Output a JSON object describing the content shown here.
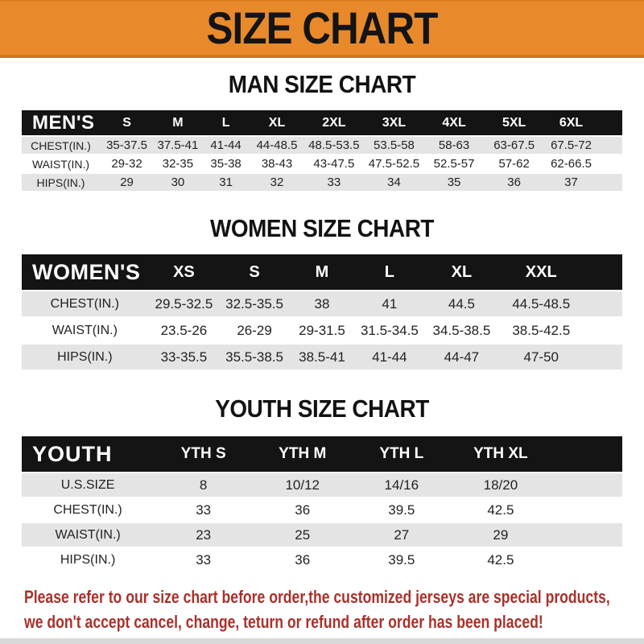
{
  "banner": {
    "title": "SIZE CHART"
  },
  "sections": {
    "men": {
      "title": "MAN SIZE CHART"
    },
    "women": {
      "title": "WOMEN SIZE CHART"
    },
    "youth": {
      "title": "YOUTH SIZE CHART"
    }
  },
  "tables": {
    "men": {
      "header_label": "MEN'S",
      "columns": [
        "S",
        "M",
        "L",
        "XL",
        "2XL",
        "3XL",
        "4XL",
        "5XL",
        "6XL"
      ],
      "rows": [
        {
          "label": "CHEST(IN.)",
          "values": [
            "35-37.5",
            "37.5-41",
            "41-44",
            "44-48.5",
            "48.5-53.5",
            "53.5-58",
            "58-63",
            "63-67.5",
            "67.5-72"
          ]
        },
        {
          "label": "WAIST(IN.)",
          "values": [
            "29-32",
            "32-35",
            "35-38",
            "38-43",
            "43-47.5",
            "47.5-52.5",
            "52.5-57",
            "57-62",
            "62-66.5"
          ]
        },
        {
          "label": "HIPS(IN.)",
          "values": [
            "29",
            "30",
            "31",
            "32",
            "33",
            "34",
            "35",
            "36",
            "37"
          ]
        }
      ]
    },
    "women": {
      "header_label": "WOMEN'S",
      "columns": [
        "XS",
        "S",
        "M",
        "L",
        "XL",
        "XXL"
      ],
      "rows": [
        {
          "label": "CHEST(IN.)",
          "values": [
            "29.5-32.5",
            "32.5-35.5",
            "38",
            "41",
            "44.5",
            "44.5-48.5"
          ]
        },
        {
          "label": "WAIST(IN.)",
          "values": [
            "23.5-26",
            "26-29",
            "29-31.5",
            "31.5-34.5",
            "34.5-38.5",
            "38.5-42.5"
          ]
        },
        {
          "label": "HIPS(IN.)",
          "values": [
            "33-35.5",
            "35.5-38.5",
            "38.5-41",
            "41-44",
            "44-47",
            "47-50"
          ]
        }
      ]
    },
    "youth": {
      "header_label": "YOUTH",
      "columns": [
        "YTH S",
        "YTH M",
        "YTH L",
        "YTH XL"
      ],
      "rows": [
        {
          "label": "U.S.SIZE",
          "values": [
            "8",
            "10/12",
            "14/16",
            "18/20"
          ]
        },
        {
          "label": "CHEST(IN.)",
          "values": [
            "33",
            "36",
            "39.5",
            "42.5"
          ]
        },
        {
          "label": "WAIST(IN.)",
          "values": [
            "23",
            "25",
            "27",
            "29"
          ]
        },
        {
          "label": "HIPS(IN.)",
          "values": [
            "33",
            "36",
            "39.5",
            "42.5"
          ]
        }
      ]
    }
  },
  "footer": {
    "lines": [
      "Please refer to our size chart before order,the customized jerseys are special products,",
      "we don't accept cancel, change, teturn or refund after order has been placed!"
    ]
  },
  "colors": {
    "banner_orange": "#E88A2B",
    "banner_border": "#D0781C",
    "header_bar_black": "#141414",
    "row_stripe_gray": "#E4E4E4",
    "footer_red": "#A9312B",
    "bottom_strip_gray": "#D9D9D9"
  }
}
